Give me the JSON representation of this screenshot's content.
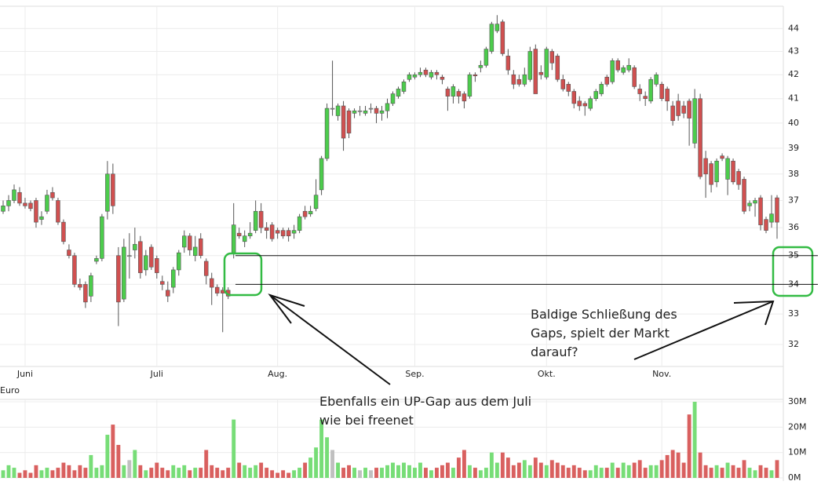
{
  "chart_data": {
    "type": "candlestick",
    "log_scale": true,
    "grid": true,
    "ylim": [
      31.3,
      45
    ],
    "yticks": [
      32,
      33,
      34,
      35,
      36,
      37,
      38,
      39,
      40,
      41,
      42,
      43,
      44
    ],
    "unit_label": "Euro",
    "up_color": "#4ccc4c",
    "down_color": "#d05050",
    "flat_color": "#c0c0c0",
    "volume_up_color": "#77dd77",
    "volume_down_color": "#d9605f",
    "gap_lines": [
      35,
      34
    ],
    "categories": [
      null,
      null,
      null,
      null,
      "Juni",
      null,
      null,
      null,
      null,
      null,
      null,
      null,
      null,
      null,
      null,
      null,
      null,
      null,
      null,
      null,
      null,
      null,
      null,
      null,
      null,
      null,
      null,
      null,
      "Juli",
      null,
      null,
      null,
      null,
      null,
      null,
      null,
      null,
      null,
      null,
      null,
      null,
      null,
      null,
      null,
      null,
      null,
      null,
      null,
      null,
      null,
      "Aug.",
      null,
      null,
      null,
      null,
      null,
      null,
      null,
      null,
      null,
      null,
      null,
      null,
      null,
      null,
      null,
      null,
      null,
      null,
      null,
      null,
      null,
      null,
      null,
      null,
      "Sep.",
      null,
      null,
      null,
      null,
      null,
      null,
      null,
      null,
      null,
      null,
      null,
      null,
      null,
      null,
      null,
      null,
      null,
      null,
      null,
      null,
      null,
      null,
      null,
      "Okt.",
      null,
      null,
      null,
      null,
      null,
      null,
      null,
      null,
      null,
      null,
      null,
      null,
      null,
      null,
      null,
      null,
      null,
      null,
      null,
      null,
      "Nov.",
      null,
      null,
      null,
      null,
      null,
      null,
      null,
      null,
      null,
      null,
      null,
      null,
      null,
      null,
      null,
      null,
      null,
      null,
      null,
      null,
      null
    ],
    "candles": [
      [
        36.6,
        37.0,
        36.5,
        36.8
      ],
      [
        36.8,
        37.2,
        36.6,
        37.0
      ],
      [
        37.0,
        37.6,
        36.9,
        37.4
      ],
      [
        37.3,
        37.5,
        36.8,
        36.9
      ],
      [
        36.9,
        37.1,
        36.7,
        36.8
      ],
      [
        36.9,
        37.0,
        36.6,
        36.7
      ],
      [
        37.0,
        37.1,
        36.0,
        36.2
      ],
      [
        36.3,
        36.6,
        36.1,
        36.4
      ],
      [
        36.6,
        37.4,
        36.5,
        37.2
      ],
      [
        37.3,
        37.5,
        37.0,
        37.1
      ],
      [
        37.0,
        37.1,
        36.1,
        36.2
      ],
      [
        36.2,
        36.3,
        35.4,
        35.5
      ],
      [
        35.2,
        35.4,
        34.9,
        35.0
      ],
      [
        35.0,
        35.1,
        33.9,
        34.0
      ],
      [
        34.0,
        34.2,
        33.8,
        33.9
      ],
      [
        34.0,
        34.1,
        33.2,
        33.4
      ],
      [
        33.6,
        34.4,
        33.4,
        34.3
      ],
      [
        34.8,
        35.0,
        34.7,
        34.9
      ],
      [
        34.9,
        36.5,
        34.8,
        36.4
      ],
      [
        36.6,
        38.5,
        36.3,
        38.0
      ],
      [
        38.0,
        38.4,
        36.5,
        36.8
      ],
      [
        35.0,
        35.3,
        32.6,
        33.4
      ],
      [
        33.5,
        35.6,
        33.4,
        35.3
      ],
      [
        35.0,
        35.8,
        34.2,
        35.0
      ],
      [
        35.2,
        36.0,
        34.9,
        35.4
      ],
      [
        35.5,
        35.7,
        34.2,
        34.4
      ],
      [
        34.5,
        35.2,
        34.3,
        35.0
      ],
      [
        35.3,
        35.4,
        34.5,
        34.6
      ],
      [
        34.9,
        35.0,
        34.2,
        34.4
      ],
      [
        34.1,
        34.3,
        33.8,
        34.0
      ],
      [
        33.8,
        34.1,
        33.4,
        33.6
      ],
      [
        33.9,
        34.6,
        33.7,
        34.5
      ],
      [
        34.5,
        35.2,
        34.3,
        35.1
      ],
      [
        35.3,
        35.9,
        35.1,
        35.7
      ],
      [
        35.7,
        35.8,
        35.0,
        35.2
      ],
      [
        35.0,
        35.7,
        34.8,
        35.3
      ],
      [
        35.6,
        35.8,
        34.9,
        35.0
      ],
      [
        34.8,
        34.9,
        34.0,
        34.3
      ],
      [
        34.2,
        34.4,
        33.3,
        33.9
      ],
      [
        33.9,
        34.0,
        33.6,
        33.7
      ],
      [
        33.8,
        33.9,
        32.4,
        33.7
      ],
      [
        33.8,
        33.9,
        33.5,
        33.6
      ],
      [
        35.1,
        36.9,
        34.9,
        36.1
      ],
      [
        35.8,
        36.0,
        35.6,
        35.7
      ],
      [
        35.5,
        35.9,
        35.3,
        35.7
      ],
      [
        35.7,
        36.2,
        35.6,
        35.8
      ],
      [
        35.9,
        37.0,
        35.8,
        36.6
      ],
      [
        36.6,
        36.9,
        35.8,
        36.0
      ],
      [
        36.0,
        36.2,
        35.6,
        35.9
      ],
      [
        36.1,
        36.2,
        35.5,
        35.6
      ],
      [
        35.9,
        36.0,
        35.6,
        35.8
      ],
      [
        35.9,
        36.0,
        35.6,
        35.7
      ],
      [
        35.9,
        36.0,
        35.5,
        35.7
      ],
      [
        35.8,
        36.1,
        35.6,
        35.9
      ],
      [
        35.9,
        36.5,
        35.8,
        36.4
      ],
      [
        36.6,
        36.8,
        36.3,
        36.4
      ],
      [
        36.5,
        36.8,
        36.4,
        36.6
      ],
      [
        36.7,
        37.8,
        36.6,
        37.2
      ],
      [
        37.4,
        38.7,
        37.2,
        38.6
      ],
      [
        38.6,
        40.8,
        38.5,
        40.6
      ],
      [
        40.6,
        42.6,
        40.3,
        40.6
      ],
      [
        40.3,
        40.8,
        40.1,
        40.7
      ],
      [
        40.7,
        40.9,
        38.9,
        39.4
      ],
      [
        40.5,
        40.6,
        39.4,
        39.6
      ],
      [
        40.4,
        40.6,
        40.2,
        40.5
      ],
      [
        40.5,
        40.7,
        40.3,
        40.5
      ],
      [
        40.4,
        40.7,
        40.3,
        40.5
      ],
      [
        40.6,
        40.8,
        40.4,
        40.6
      ],
      [
        40.6,
        40.7,
        40.0,
        40.4
      ],
      [
        40.4,
        40.7,
        40.1,
        40.5
      ],
      [
        40.5,
        41.0,
        40.2,
        40.8
      ],
      [
        40.8,
        41.3,
        40.7,
        41.2
      ],
      [
        41.1,
        41.5,
        41.0,
        41.4
      ],
      [
        41.3,
        41.8,
        41.2,
        41.7
      ],
      [
        41.8,
        42.1,
        41.7,
        42.0
      ],
      [
        41.9,
        42.1,
        41.8,
        42.0
      ],
      [
        42.0,
        42.3,
        41.9,
        42.1
      ],
      [
        42.2,
        42.3,
        41.9,
        42.0
      ],
      [
        41.9,
        42.2,
        41.8,
        42.1
      ],
      [
        42.1,
        42.2,
        41.8,
        42.0
      ],
      [
        41.9,
        42.0,
        41.6,
        41.8
      ],
      [
        41.4,
        41.5,
        40.5,
        41.1
      ],
      [
        41.1,
        41.6,
        40.8,
        41.5
      ],
      [
        41.3,
        41.4,
        40.8,
        41.1
      ],
      [
        41.2,
        41.3,
        40.6,
        40.9
      ],
      [
        41.1,
        42.1,
        41.0,
        42.0
      ],
      [
        42.0,
        42.1,
        41.7,
        41.95
      ],
      [
        42.3,
        42.6,
        42.1,
        42.4
      ],
      [
        42.4,
        43.2,
        42.3,
        43.1
      ],
      [
        43.0,
        44.3,
        42.9,
        44.2
      ],
      [
        43.9,
        44.6,
        43.8,
        44.2
      ],
      [
        44.3,
        44.4,
        42.8,
        42.9
      ],
      [
        42.8,
        43.1,
        42.0,
        42.2
      ],
      [
        42.0,
        42.2,
        41.4,
        41.6
      ],
      [
        41.8,
        42.0,
        41.5,
        41.6
      ],
      [
        41.6,
        42.3,
        41.5,
        42.0
      ],
      [
        41.8,
        43.2,
        41.7,
        43.0
      ],
      [
        43.1,
        43.3,
        41.2,
        41.2
      ],
      [
        42.1,
        42.4,
        41.8,
        42.0
      ],
      [
        41.9,
        43.2,
        41.8,
        43.1
      ],
      [
        43.0,
        43.1,
        42.2,
        42.5
      ],
      [
        42.8,
        42.9,
        41.7,
        41.8
      ],
      [
        41.8,
        42.0,
        41.3,
        41.4
      ],
      [
        41.6,
        41.7,
        41.1,
        41.3
      ],
      [
        41.3,
        41.4,
        40.6,
        40.8
      ],
      [
        40.9,
        41.1,
        40.5,
        40.7
      ],
      [
        40.8,
        40.9,
        40.3,
        40.7
      ],
      [
        40.6,
        41.1,
        40.5,
        41.0
      ],
      [
        41.0,
        41.4,
        40.9,
        41.3
      ],
      [
        41.2,
        41.7,
        41.1,
        41.6
      ],
      [
        41.9,
        42.0,
        41.5,
        41.6
      ],
      [
        41.7,
        42.7,
        41.6,
        42.6
      ],
      [
        42.6,
        42.7,
        42.1,
        42.2
      ],
      [
        42.1,
        42.4,
        42.0,
        42.3
      ],
      [
        42.2,
        42.7,
        42.1,
        42.4
      ],
      [
        42.3,
        42.4,
        41.4,
        41.5
      ],
      [
        41.4,
        41.6,
        40.9,
        41.2
      ],
      [
        41.1,
        41.3,
        40.7,
        41.0
      ],
      [
        40.9,
        41.9,
        40.8,
        41.8
      ],
      [
        41.6,
        42.1,
        41.5,
        42.0
      ],
      [
        41.6,
        41.7,
        40.9,
        41.0
      ],
      [
        41.4,
        41.5,
        40.5,
        40.9
      ],
      [
        40.7,
        40.9,
        39.9,
        40.1
      ],
      [
        40.9,
        41.2,
        40.1,
        40.3
      ],
      [
        40.7,
        40.9,
        40.2,
        40.4
      ],
      [
        40.9,
        41.0,
        39.1,
        40.2
      ],
      [
        39.2,
        41.4,
        39.0,
        41.0
      ],
      [
        41.0,
        41.2,
        37.8,
        37.9
      ],
      [
        38.6,
        38.9,
        37.1,
        38.0
      ],
      [
        38.4,
        38.5,
        37.3,
        37.6
      ],
      [
        37.7,
        38.6,
        37.5,
        38.5
      ],
      [
        38.7,
        38.8,
        38.5,
        38.6
      ],
      [
        37.8,
        38.7,
        37.2,
        38.6
      ],
      [
        38.5,
        38.6,
        37.6,
        37.7
      ],
      [
        38.1,
        38.2,
        37.4,
        37.6
      ],
      [
        37.8,
        37.9,
        36.5,
        36.6
      ],
      [
        36.8,
        37.0,
        36.6,
        36.9
      ],
      [
        36.9,
        37.1,
        36.4,
        37.0
      ],
      [
        37.1,
        37.2,
        35.9,
        36.1
      ],
      [
        36.3,
        36.4,
        35.8,
        35.9
      ],
      [
        36.2,
        37.2,
        36.0,
        36.5
      ],
      [
        37.1,
        37.2,
        35.6,
        36.2
      ]
    ],
    "volumes": [
      3,
      5,
      4,
      2,
      3,
      2,
      5,
      3,
      4,
      3,
      4,
      6,
      5,
      3,
      5,
      4,
      9,
      4,
      5,
      17,
      21,
      13,
      5,
      7,
      11,
      5,
      3,
      4,
      6,
      4,
      3,
      5,
      4,
      5,
      3,
      4,
      4,
      11,
      5,
      4,
      3,
      4,
      23,
      6,
      5,
      4,
      5,
      6,
      4,
      3,
      2,
      3,
      2,
      3,
      4,
      6,
      8,
      12,
      23,
      16,
      11,
      6,
      4,
      5,
      4,
      3,
      4,
      3,
      4,
      4,
      5,
      6,
      5,
      6,
      5,
      4,
      6,
      4,
      3,
      4,
      5,
      6,
      4,
      8,
      11,
      5,
      4,
      3,
      4,
      10,
      6,
      10,
      8,
      5,
      6,
      7,
      5,
      8,
      6,
      5,
      7,
      6,
      5,
      4,
      5,
      4,
      3,
      3,
      5,
      4,
      4,
      6,
      4,
      6,
      5,
      6,
      7,
      4,
      5,
      5,
      7,
      9,
      11,
      10,
      6,
      25,
      30,
      10,
      5,
      4,
      5,
      4,
      6,
      5,
      4,
      7,
      4,
      3,
      5,
      4,
      3,
      7
    ],
    "volume_ylim": [
      0,
      30
    ],
    "volume_yticks": [
      {
        "value": 0,
        "label": "0M"
      },
      {
        "value": 10,
        "label": "10M"
      },
      {
        "value": 20,
        "label": "20M"
      },
      {
        "value": 30,
        "label": "30M"
      }
    ],
    "annotations": [
      {
        "lines": [
          "Baldige Schließung des",
          "Gaps, spielt der Markt",
          "darauf?"
        ]
      },
      {
        "lines": [
          "Ebenfalls ein UP-Gap aus dem Juli",
          "wie bei freenet"
        ]
      }
    ]
  }
}
